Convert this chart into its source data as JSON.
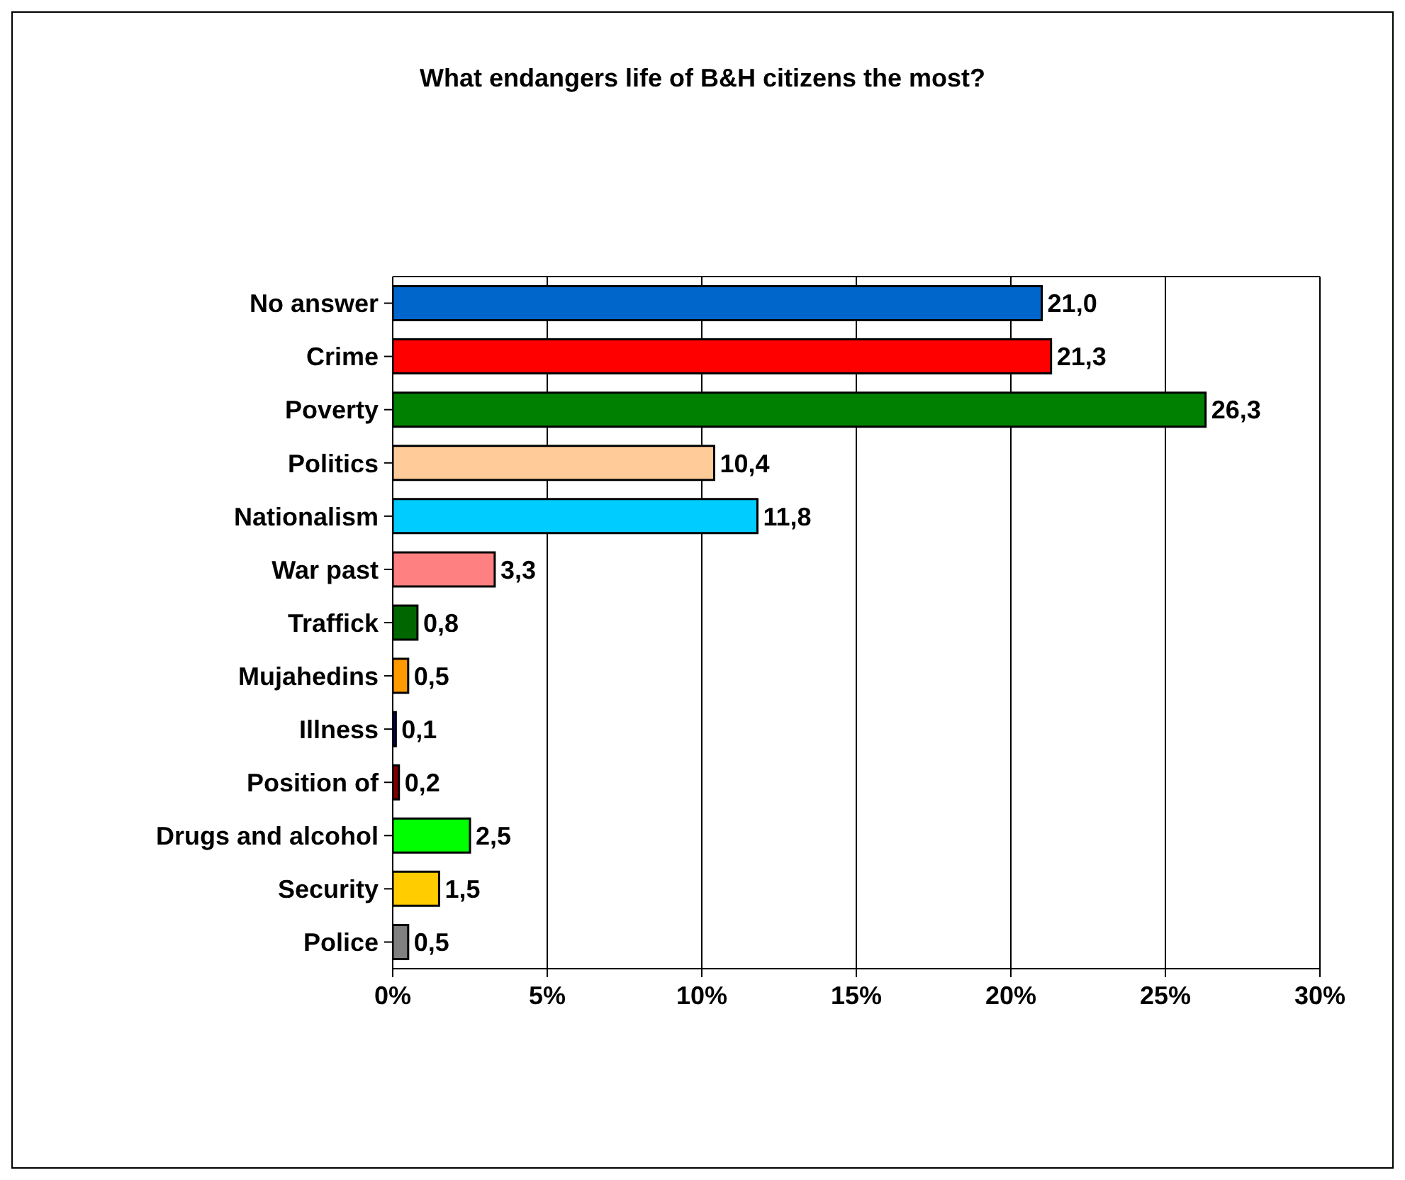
{
  "chart_data": {
    "type": "bar",
    "orientation": "horizontal",
    "title": "What endangers life of B&H citizens the most?",
    "categories": [
      "No answer",
      "Crime",
      "Poverty",
      "Politics",
      "Nationalism",
      "War past",
      "Traffick",
      "Mujahedins",
      "Illness",
      "Position of",
      "Drugs and alcohol",
      "Security",
      "Police"
    ],
    "values": [
      21.0,
      21.3,
      26.3,
      10.4,
      11.8,
      3.3,
      0.8,
      0.5,
      0.1,
      0.2,
      2.5,
      1.5,
      0.5
    ],
    "value_labels": [
      "21,0",
      "21,3",
      "26,3",
      "10,4",
      "11,8",
      "3,3",
      "0,8",
      "0,5",
      "0,1",
      "0,2",
      "2,5",
      "1,5",
      "0,5"
    ],
    "colors": [
      "#0066cc",
      "#ff0000",
      "#008000",
      "#ffcc99",
      "#00ccff",
      "#ff8080",
      "#006600",
      "#ff9900",
      "#000080",
      "#800000",
      "#00ff00",
      "#ffcc00",
      "#808080"
    ],
    "xlim": [
      0,
      30
    ],
    "xticks": [
      {
        "value": 0,
        "label": "0%"
      },
      {
        "value": 5,
        "label": "5%"
      },
      {
        "value": 10,
        "label": "10%"
      },
      {
        "value": 15,
        "label": "15%"
      },
      {
        "value": 20,
        "label": "20%"
      },
      {
        "value": 25,
        "label": "25%"
      },
      {
        "value": 30,
        "label": "30%"
      }
    ],
    "grid": "x"
  }
}
